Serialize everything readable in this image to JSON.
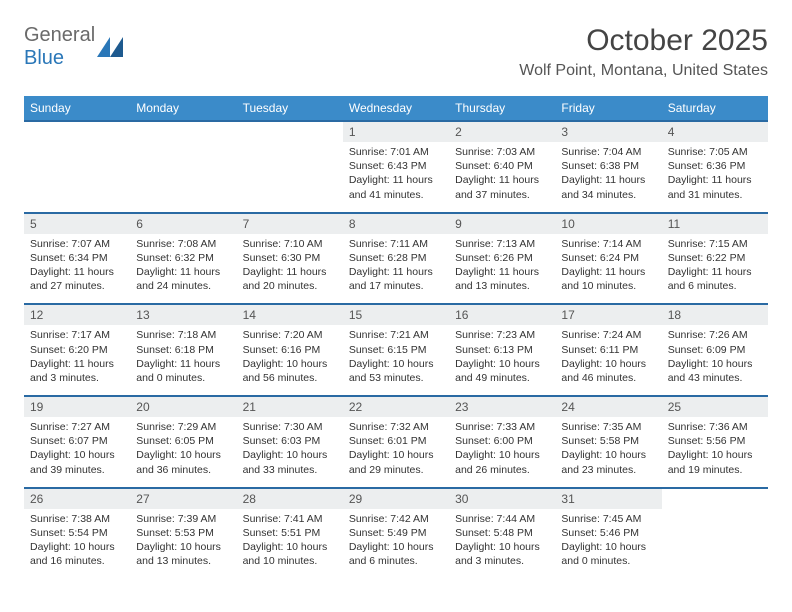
{
  "logo": {
    "general": "General",
    "blue": "Blue"
  },
  "title": "October 2025",
  "location": "Wolf Point, Montana, United States",
  "colors": {
    "header_bg": "#3b8bc9",
    "header_text": "#ffffff",
    "rule": "#2a6aa3",
    "daynum_bg": "#eceeef",
    "text": "#333333",
    "logo_gray": "#6a6a6a",
    "logo_blue": "#2a77b8"
  },
  "day_headers": [
    "Sunday",
    "Monday",
    "Tuesday",
    "Wednesday",
    "Thursday",
    "Friday",
    "Saturday"
  ],
  "weeks": [
    [
      null,
      null,
      null,
      {
        "n": "1",
        "sr": "Sunrise: 7:01 AM",
        "ss": "Sunset: 6:43 PM",
        "d1": "Daylight: 11 hours",
        "d2": "and 41 minutes."
      },
      {
        "n": "2",
        "sr": "Sunrise: 7:03 AM",
        "ss": "Sunset: 6:40 PM",
        "d1": "Daylight: 11 hours",
        "d2": "and 37 minutes."
      },
      {
        "n": "3",
        "sr": "Sunrise: 7:04 AM",
        "ss": "Sunset: 6:38 PM",
        "d1": "Daylight: 11 hours",
        "d2": "and 34 minutes."
      },
      {
        "n": "4",
        "sr": "Sunrise: 7:05 AM",
        "ss": "Sunset: 6:36 PM",
        "d1": "Daylight: 11 hours",
        "d2": "and 31 minutes."
      }
    ],
    [
      {
        "n": "5",
        "sr": "Sunrise: 7:07 AM",
        "ss": "Sunset: 6:34 PM",
        "d1": "Daylight: 11 hours",
        "d2": "and 27 minutes."
      },
      {
        "n": "6",
        "sr": "Sunrise: 7:08 AM",
        "ss": "Sunset: 6:32 PM",
        "d1": "Daylight: 11 hours",
        "d2": "and 24 minutes."
      },
      {
        "n": "7",
        "sr": "Sunrise: 7:10 AM",
        "ss": "Sunset: 6:30 PM",
        "d1": "Daylight: 11 hours",
        "d2": "and 20 minutes."
      },
      {
        "n": "8",
        "sr": "Sunrise: 7:11 AM",
        "ss": "Sunset: 6:28 PM",
        "d1": "Daylight: 11 hours",
        "d2": "and 17 minutes."
      },
      {
        "n": "9",
        "sr": "Sunrise: 7:13 AM",
        "ss": "Sunset: 6:26 PM",
        "d1": "Daylight: 11 hours",
        "d2": "and 13 minutes."
      },
      {
        "n": "10",
        "sr": "Sunrise: 7:14 AM",
        "ss": "Sunset: 6:24 PM",
        "d1": "Daylight: 11 hours",
        "d2": "and 10 minutes."
      },
      {
        "n": "11",
        "sr": "Sunrise: 7:15 AM",
        "ss": "Sunset: 6:22 PM",
        "d1": "Daylight: 11 hours",
        "d2": "and 6 minutes."
      }
    ],
    [
      {
        "n": "12",
        "sr": "Sunrise: 7:17 AM",
        "ss": "Sunset: 6:20 PM",
        "d1": "Daylight: 11 hours",
        "d2": "and 3 minutes."
      },
      {
        "n": "13",
        "sr": "Sunrise: 7:18 AM",
        "ss": "Sunset: 6:18 PM",
        "d1": "Daylight: 11 hours",
        "d2": "and 0 minutes."
      },
      {
        "n": "14",
        "sr": "Sunrise: 7:20 AM",
        "ss": "Sunset: 6:16 PM",
        "d1": "Daylight: 10 hours",
        "d2": "and 56 minutes."
      },
      {
        "n": "15",
        "sr": "Sunrise: 7:21 AM",
        "ss": "Sunset: 6:15 PM",
        "d1": "Daylight: 10 hours",
        "d2": "and 53 minutes."
      },
      {
        "n": "16",
        "sr": "Sunrise: 7:23 AM",
        "ss": "Sunset: 6:13 PM",
        "d1": "Daylight: 10 hours",
        "d2": "and 49 minutes."
      },
      {
        "n": "17",
        "sr": "Sunrise: 7:24 AM",
        "ss": "Sunset: 6:11 PM",
        "d1": "Daylight: 10 hours",
        "d2": "and 46 minutes."
      },
      {
        "n": "18",
        "sr": "Sunrise: 7:26 AM",
        "ss": "Sunset: 6:09 PM",
        "d1": "Daylight: 10 hours",
        "d2": "and 43 minutes."
      }
    ],
    [
      {
        "n": "19",
        "sr": "Sunrise: 7:27 AM",
        "ss": "Sunset: 6:07 PM",
        "d1": "Daylight: 10 hours",
        "d2": "and 39 minutes."
      },
      {
        "n": "20",
        "sr": "Sunrise: 7:29 AM",
        "ss": "Sunset: 6:05 PM",
        "d1": "Daylight: 10 hours",
        "d2": "and 36 minutes."
      },
      {
        "n": "21",
        "sr": "Sunrise: 7:30 AM",
        "ss": "Sunset: 6:03 PM",
        "d1": "Daylight: 10 hours",
        "d2": "and 33 minutes."
      },
      {
        "n": "22",
        "sr": "Sunrise: 7:32 AM",
        "ss": "Sunset: 6:01 PM",
        "d1": "Daylight: 10 hours",
        "d2": "and 29 minutes."
      },
      {
        "n": "23",
        "sr": "Sunrise: 7:33 AM",
        "ss": "Sunset: 6:00 PM",
        "d1": "Daylight: 10 hours",
        "d2": "and 26 minutes."
      },
      {
        "n": "24",
        "sr": "Sunrise: 7:35 AM",
        "ss": "Sunset: 5:58 PM",
        "d1": "Daylight: 10 hours",
        "d2": "and 23 minutes."
      },
      {
        "n": "25",
        "sr": "Sunrise: 7:36 AM",
        "ss": "Sunset: 5:56 PM",
        "d1": "Daylight: 10 hours",
        "d2": "and 19 minutes."
      }
    ],
    [
      {
        "n": "26",
        "sr": "Sunrise: 7:38 AM",
        "ss": "Sunset: 5:54 PM",
        "d1": "Daylight: 10 hours",
        "d2": "and 16 minutes."
      },
      {
        "n": "27",
        "sr": "Sunrise: 7:39 AM",
        "ss": "Sunset: 5:53 PM",
        "d1": "Daylight: 10 hours",
        "d2": "and 13 minutes."
      },
      {
        "n": "28",
        "sr": "Sunrise: 7:41 AM",
        "ss": "Sunset: 5:51 PM",
        "d1": "Daylight: 10 hours",
        "d2": "and 10 minutes."
      },
      {
        "n": "29",
        "sr": "Sunrise: 7:42 AM",
        "ss": "Sunset: 5:49 PM",
        "d1": "Daylight: 10 hours",
        "d2": "and 6 minutes."
      },
      {
        "n": "30",
        "sr": "Sunrise: 7:44 AM",
        "ss": "Sunset: 5:48 PM",
        "d1": "Daylight: 10 hours",
        "d2": "and 3 minutes."
      },
      {
        "n": "31",
        "sr": "Sunrise: 7:45 AM",
        "ss": "Sunset: 5:46 PM",
        "d1": "Daylight: 10 hours",
        "d2": "and 0 minutes."
      },
      null
    ]
  ]
}
